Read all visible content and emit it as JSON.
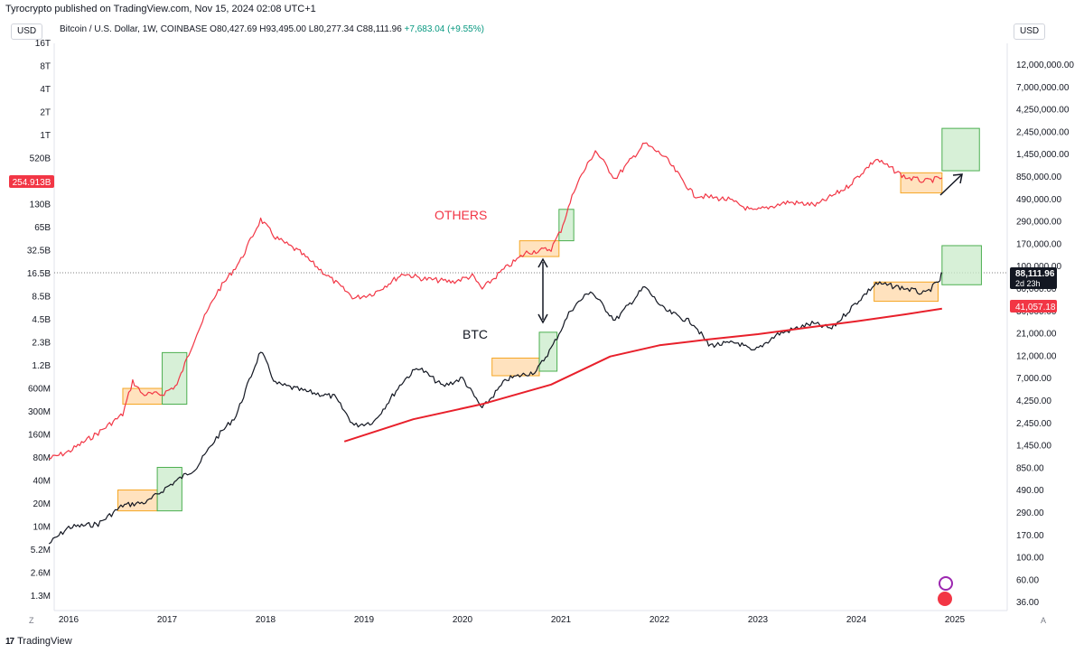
{
  "header": {
    "attribution": "Tyrocrypto published on TradingView.com, Nov 15, 2024 02:08 UTC+1",
    "left_unit": "USD",
    "right_unit": "USD",
    "symbol": "Bitcoin / U.S. Dollar, 1W, COINBASE",
    "ohlc": "O80,427.69  H93,495.00  L80,277.34  C88,111.96",
    "change": "+7,683.04 (+9.55%)"
  },
  "footer": {
    "brand": "TradingView",
    "logo": "17",
    "corner_left": "Z",
    "corner_right": "A"
  },
  "colors": {
    "btc": "#131722",
    "others": "#f23645",
    "ma": "#e8202b",
    "orange_fill": "#ffd8a8",
    "orange_stroke": "#f5a623",
    "green_fill": "#c9ebc9",
    "green_stroke": "#4caf50"
  },
  "chart_data": {
    "type": "line",
    "title": "",
    "x_ticks": [
      "2016",
      "2017",
      "2018",
      "2019",
      "2020",
      "2021",
      "2022",
      "2023",
      "2024",
      "2025"
    ],
    "left_axis": {
      "scale": "log",
      "ticks": [
        "16T",
        "8T",
        "4T",
        "2T",
        "1T",
        "520B",
        "260B",
        "130B",
        "65B",
        "32.5B",
        "16.5B",
        "8.5B",
        "4.5B",
        "2.3B",
        "1.2B",
        "600M",
        "300M",
        "160M",
        "80M",
        "40M",
        "20M",
        "10M",
        "5.2M",
        "2.6M",
        "1.3M"
      ],
      "current_label": "254.913B"
    },
    "right_axis": {
      "scale": "log",
      "ticks": [
        "12,000,000.00",
        "7,000,000.00",
        "4,250,000.00",
        "2,450,000.00",
        "1,450,000.00",
        "850,000.00",
        "490,000.00",
        "290,000.00",
        "170,000.00",
        "100,000.00",
        "60,000.00",
        "36,000.00",
        "21,000.00",
        "12,000.00",
        "7,000.00",
        "4,250.00",
        "2,450.00",
        "1,450.00",
        "850.00",
        "490.00",
        "290.00",
        "170.00",
        "100.00",
        "60.00",
        "36.00"
      ],
      "price_label": "88,111.96",
      "countdown_label": "2d 23h",
      "ma_label": "41,057.18"
    },
    "annotations": {
      "others": "OTHERS",
      "btc": "BTC"
    },
    "series": [
      {
        "name": "OTHERS",
        "axis": "left",
        "points": [
          [
            2015.8,
            40000000.0
          ],
          [
            2016.0,
            50000000.0
          ],
          [
            2016.3,
            90000000.0
          ],
          [
            2016.55,
            160000000.0
          ],
          [
            2016.65,
            450000000.0
          ],
          [
            2016.75,
            300000000.0
          ],
          [
            2016.95,
            300000000.0
          ],
          [
            2017.1,
            400000000.0
          ],
          [
            2017.3,
            2000000000.0
          ],
          [
            2017.5,
            7000000000.0
          ],
          [
            2017.75,
            20000000000.0
          ],
          [
            2017.95,
            70000000000.0
          ],
          [
            2018.1,
            40000000000.0
          ],
          [
            2018.35,
            25000000000.0
          ],
          [
            2018.6,
            13000000000.0
          ],
          [
            2018.9,
            6000000000.0
          ],
          [
            2019.1,
            7000000000.0
          ],
          [
            2019.4,
            13000000000.0
          ],
          [
            2019.6,
            11000000000.0
          ],
          [
            2019.9,
            10000000000.0
          ],
          [
            2020.1,
            12000000000.0
          ],
          [
            2020.2,
            8000000000.0
          ],
          [
            2020.4,
            14000000000.0
          ],
          [
            2020.65,
            25000000000.0
          ],
          [
            2020.9,
            28000000000.0
          ],
          [
            2021.0,
            50000000000.0
          ],
          [
            2021.15,
            200000000000.0
          ],
          [
            2021.35,
            600000000000.0
          ],
          [
            2021.55,
            250000000000.0
          ],
          [
            2021.85,
            750000000000.0
          ],
          [
            2022.05,
            500000000000.0
          ],
          [
            2022.35,
            150000000000.0
          ],
          [
            2022.7,
            130000000000.0
          ],
          [
            2022.95,
            90000000000.0
          ],
          [
            2023.3,
            120000000000.0
          ],
          [
            2023.6,
            110000000000.0
          ],
          [
            2023.9,
            190000000000.0
          ],
          [
            2024.2,
            460000000000.0
          ],
          [
            2024.5,
            260000000000.0
          ],
          [
            2024.7,
            230000000000.0
          ],
          [
            2024.87,
            255000000000.0
          ]
        ]
      },
      {
        "name": "BTC",
        "axis": "right",
        "points": [
          [
            2015.8,
            290
          ],
          [
            2016.0,
            410
          ],
          [
            2016.3,
            440
          ],
          [
            2016.55,
            650
          ],
          [
            2016.8,
            700
          ],
          [
            2017.0,
            960
          ],
          [
            2017.3,
            1450
          ],
          [
            2017.5,
            2700
          ],
          [
            2017.7,
            4300
          ],
          [
            2017.95,
            17000
          ],
          [
            2018.1,
            8500
          ],
          [
            2018.4,
            7200
          ],
          [
            2018.7,
            6400
          ],
          [
            2018.9,
            3500
          ],
          [
            2019.1,
            3800
          ],
          [
            2019.4,
            9000
          ],
          [
            2019.55,
            12000
          ],
          [
            2019.8,
            8000
          ],
          [
            2020.0,
            9500
          ],
          [
            2020.2,
            5000
          ],
          [
            2020.45,
            9300
          ],
          [
            2020.75,
            11000
          ],
          [
            2020.92,
            19000
          ],
          [
            2021.1,
            40000
          ],
          [
            2021.3,
            60000
          ],
          [
            2021.55,
            32000
          ],
          [
            2021.85,
            65000
          ],
          [
            2022.05,
            40000
          ],
          [
            2022.35,
            30000
          ],
          [
            2022.5,
            19000
          ],
          [
            2022.8,
            20000
          ],
          [
            2022.95,
            16500
          ],
          [
            2023.2,
            24000
          ],
          [
            2023.55,
            30000
          ],
          [
            2023.75,
            27000
          ],
          [
            2023.95,
            42000
          ],
          [
            2024.2,
            70000
          ],
          [
            2024.5,
            63000
          ],
          [
            2024.7,
            56000
          ],
          [
            2024.85,
            75000
          ],
          [
            2024.87,
            88111
          ]
        ]
      },
      {
        "name": "200W MA",
        "axis": "right",
        "points": [
          [
            2018.8,
            2500
          ],
          [
            2019.5,
            4000
          ],
          [
            2020.2,
            5500
          ],
          [
            2020.9,
            8300
          ],
          [
            2021.5,
            15000
          ],
          [
            2022.0,
            19000
          ],
          [
            2022.5,
            21500
          ],
          [
            2023.0,
            24000
          ],
          [
            2023.5,
            27500
          ],
          [
            2024.0,
            31500
          ],
          [
            2024.5,
            36500
          ],
          [
            2024.87,
            41057
          ]
        ]
      }
    ],
    "boxes": [
      {
        "color": "orange",
        "axis": "left",
        "x0": 2016.55,
        "x1": 2016.95,
        "y0": 220000000.0,
        "y1": 360000000.0
      },
      {
        "color": "green",
        "axis": "left",
        "x0": 2016.95,
        "x1": 2017.2,
        "y0": 220000000.0,
        "y1": 1100000000.0
      },
      {
        "color": "orange",
        "axis": "right",
        "x0": 2016.5,
        "x1": 2016.9,
        "y0": 580,
        "y1": 900
      },
      {
        "color": "green",
        "axis": "right",
        "x0": 2016.9,
        "x1": 2017.15,
        "y0": 580,
        "y1": 1450
      },
      {
        "color": "orange",
        "axis": "left",
        "x0": 2020.58,
        "x1": 2020.98,
        "y0": 22000000000.0,
        "y1": 36000000000.0
      },
      {
        "color": "green",
        "axis": "left",
        "x0": 2020.98,
        "x1": 2021.13,
        "y0": 36000000000.0,
        "y1": 96000000000.0
      },
      {
        "color": "orange",
        "axis": "right",
        "x0": 2020.3,
        "x1": 2020.78,
        "y0": 10000,
        "y1": 14500
      },
      {
        "color": "green",
        "axis": "right",
        "x0": 2020.78,
        "x1": 2020.96,
        "y0": 11000,
        "y1": 25000
      },
      {
        "color": "orange",
        "axis": "left",
        "x0": 2024.45,
        "x1": 2024.87,
        "y0": 160000000000.0,
        "y1": 300000000000.0
      },
      {
        "color": "green",
        "axis": "left",
        "x0": 2024.87,
        "x1": 2025.25,
        "y0": 320000000000.0,
        "y1": 1200000000000.0
      },
      {
        "color": "orange",
        "axis": "right",
        "x0": 2024.18,
        "x1": 2024.83,
        "y0": 48000,
        "y1": 72000
      },
      {
        "color": "green",
        "axis": "right",
        "x0": 2024.87,
        "x1": 2025.27,
        "y0": 68000,
        "y1": 155000
      }
    ]
  }
}
